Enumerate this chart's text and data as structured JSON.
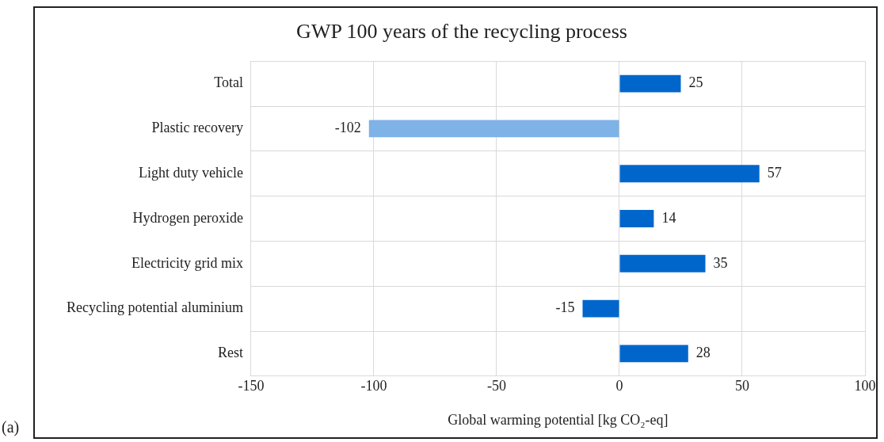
{
  "chart_data": {
    "type": "bar",
    "orientation": "horizontal",
    "title": "GWP 100 years of the recycling process",
    "xlabel": "Global warming potential [kg CO₂-eq]",
    "categories": [
      "Total",
      "Plastic recovery",
      "Light duty vehicle",
      "Hydrogen peroxide",
      "Electricity grid mix",
      "Recycling potential aluminium",
      "Rest"
    ],
    "values": [
      25,
      -102,
      57,
      14,
      35,
      -15,
      28
    ],
    "colors": [
      "#0066cc",
      "#7fb2e6",
      "#0066cc",
      "#0066cc",
      "#0066cc",
      "#0066cc",
      "#0066cc"
    ],
    "xlim": [
      -150,
      100
    ],
    "xticks": [
      -150,
      -100,
      -50,
      0,
      50,
      100
    ],
    "grid": true,
    "data_labels": true,
    "legend": false,
    "annotations": [
      "(a)"
    ]
  }
}
